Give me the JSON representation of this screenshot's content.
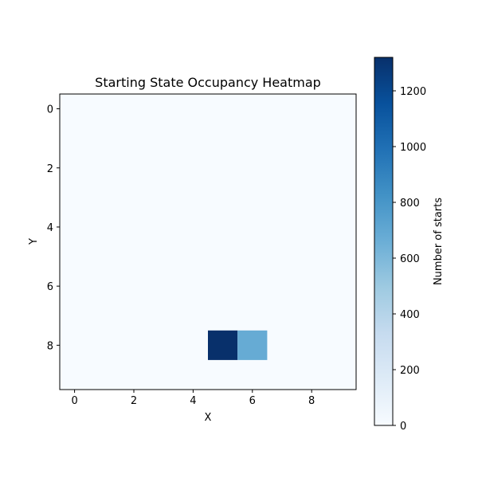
{
  "chart_data": {
    "type": "heatmap",
    "title": "Starting State Occupancy Heatmap",
    "xlabel": "X",
    "ylabel": "Y",
    "grid_size": [
      10,
      10
    ],
    "xlim": [
      -0.5,
      9.5
    ],
    "ylim": [
      9.5,
      -0.5
    ],
    "xticks": [
      0,
      2,
      4,
      6,
      8
    ],
    "yticks": [
      0,
      2,
      4,
      6,
      8
    ],
    "colormap": "Blues",
    "colorbar": {
      "label": "Number of starts",
      "range": [
        0,
        1320
      ],
      "ticks": [
        0,
        200,
        400,
        600,
        800,
        1000,
        1200
      ]
    },
    "cells": [
      {
        "x": 5,
        "y": 8,
        "value": 1320
      },
      {
        "x": 6,
        "y": 8,
        "value": 680
      }
    ],
    "background_value": 0,
    "grid": false,
    "legend": "colorbar-right"
  }
}
